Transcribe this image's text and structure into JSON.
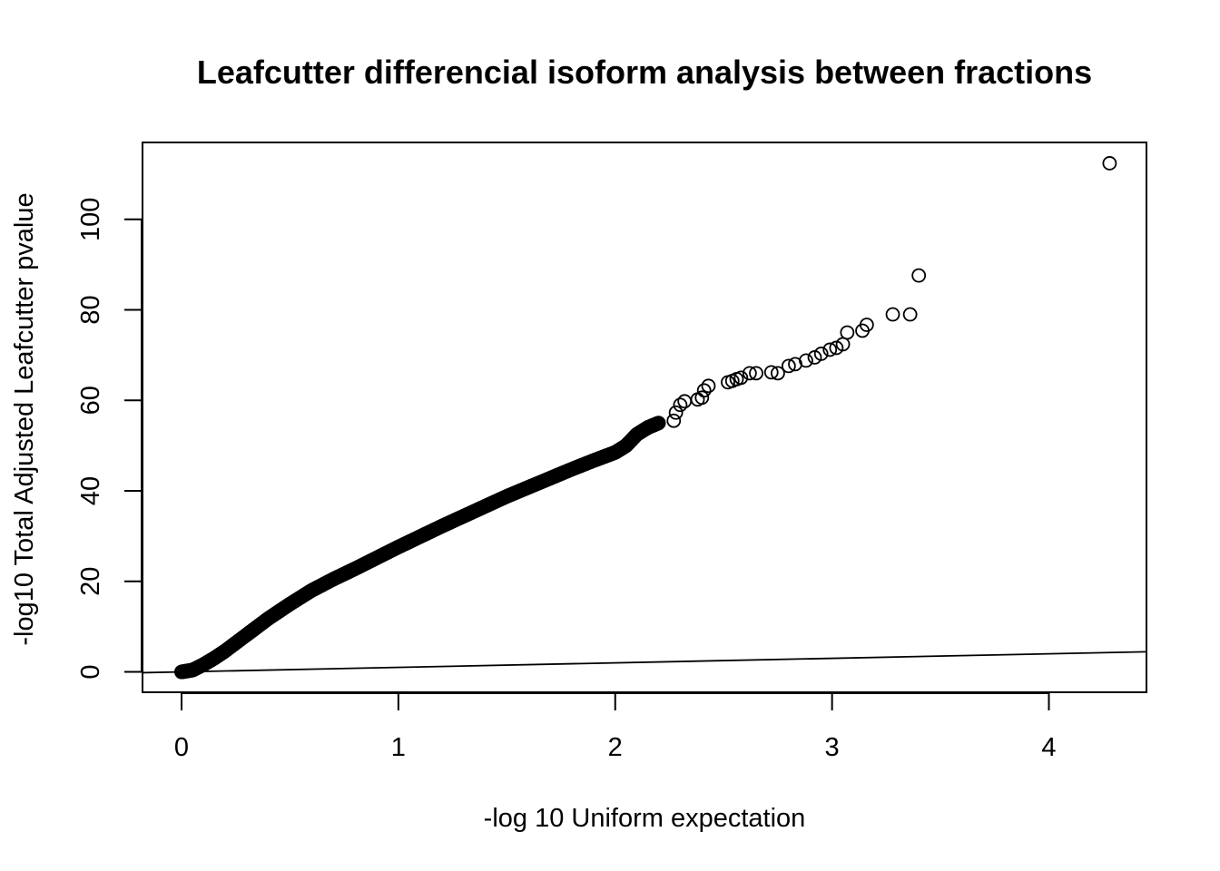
{
  "chart_data": {
    "type": "scatter",
    "title": "Leafcutter differencial isoform analysis between fractions",
    "xlabel": "-log 10 Uniform expectation",
    "ylabel": "-log10 Total Adjusted Leafcutter pvalue",
    "xlim": [
      -0.18,
      4.45
    ],
    "ylim": [
      -4.5,
      117
    ],
    "xticks": [
      0,
      1,
      2,
      3,
      4
    ],
    "yticks": [
      0,
      20,
      40,
      60,
      80,
      100
    ],
    "grid": false,
    "marker": "open-circle",
    "reference_line": {
      "type": "abline",
      "intercept": 0,
      "slope": 1
    },
    "dense_curve": {
      "x": [
        0.0,
        0.05,
        0.1,
        0.15,
        0.2,
        0.3,
        0.4,
        0.5,
        0.6,
        0.7,
        0.8,
        0.9,
        1.0,
        1.1,
        1.2,
        1.3,
        1.4,
        1.5,
        1.6,
        1.7,
        1.8,
        1.9,
        1.95,
        2.0,
        2.05,
        2.1,
        2.15,
        2.2
      ],
      "y": [
        0.0,
        0.4,
        1.6,
        3.0,
        4.6,
        8.2,
        11.8,
        15.0,
        18.0,
        20.5,
        22.8,
        25.2,
        27.6,
        29.9,
        32.2,
        34.4,
        36.6,
        38.8,
        40.8,
        42.8,
        44.8,
        46.7,
        47.6,
        48.5,
        50.0,
        52.5,
        54.0,
        55.0
      ]
    },
    "points": {
      "x": [
        2.27,
        2.28,
        2.3,
        2.32,
        2.38,
        2.4,
        2.41,
        2.43,
        2.52,
        2.54,
        2.56,
        2.58,
        2.62,
        2.65,
        2.72,
        2.75,
        2.8,
        2.83,
        2.88,
        2.92,
        2.95,
        2.99,
        3.02,
        3.05,
        3.07,
        3.14,
        3.16,
        3.28,
        3.36,
        3.4,
        4.28
      ],
      "y": [
        55.5,
        57.3,
        59.0,
        59.8,
        60.2,
        60.6,
        62.2,
        63.2,
        64.0,
        64.3,
        64.7,
        65.0,
        66.0,
        66.0,
        66.2,
        66.0,
        67.6,
        68.0,
        68.8,
        69.5,
        70.3,
        71.2,
        71.6,
        72.4,
        75.0,
        75.4,
        76.7,
        79.0,
        79.0,
        87.6,
        112.4
      ]
    },
    "plot_area": {
      "x0": 157,
      "x1": 1263,
      "y0": 157,
      "y1": 763
    }
  }
}
